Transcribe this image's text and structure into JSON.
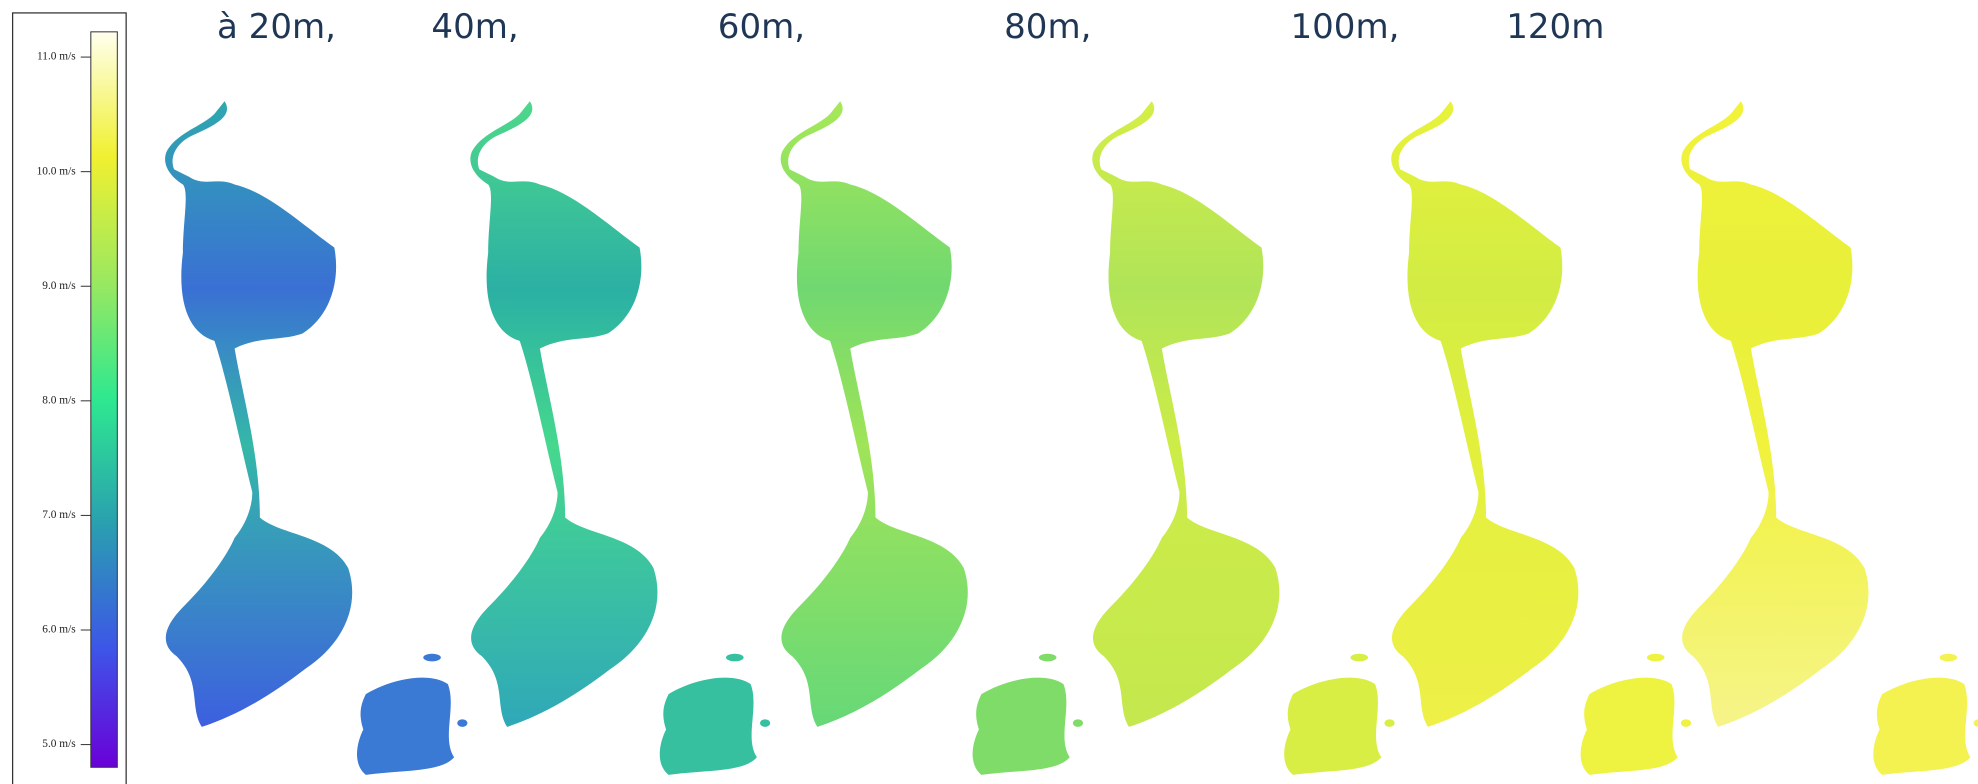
{
  "headings": [
    "à 20m,",
    "40m,",
    "60m,",
    "80m,",
    "100m,",
    "120m"
  ],
  "legend": {
    "ticks": [
      {
        "value": 5,
        "label": "5.0 m/s"
      },
      {
        "value": 6,
        "label": "6.0 m/s"
      },
      {
        "value": 7,
        "label": "7.0 m/s"
      },
      {
        "value": 8,
        "label": "8.0 m/s"
      },
      {
        "value": 9,
        "label": "9.0 m/s"
      },
      {
        "value": 10,
        "label": "10.0 m/s"
      },
      {
        "value": 11,
        "label": "11.0 m/s"
      }
    ]
  }
}
